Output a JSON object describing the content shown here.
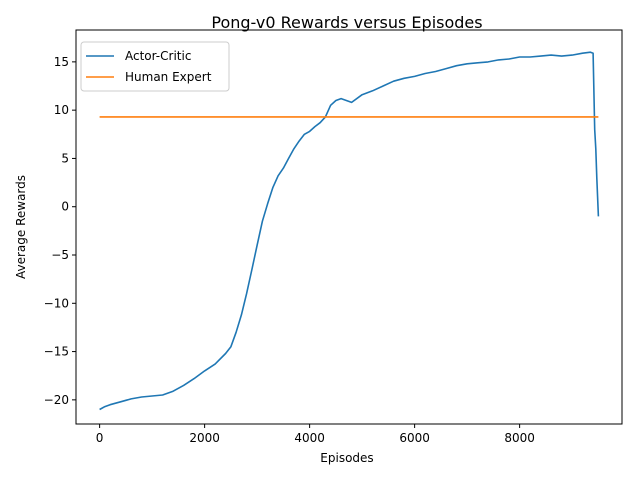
{
  "chart_data": {
    "type": "line",
    "title": "Pong-v0 Rewards versus Episodes",
    "xlabel": "Episodes",
    "ylabel": "Average Rewards",
    "xlim": [
      -450,
      9950
    ],
    "ylim": [
      -22.5,
      18.3
    ],
    "xticks": [
      0,
      2000,
      4000,
      6000,
      8000
    ],
    "yticks": [
      -20,
      -15,
      -10,
      -5,
      0,
      5,
      10,
      15
    ],
    "xtick_labels": [
      "0",
      "2000",
      "4000",
      "6000",
      "8000"
    ],
    "ytick_labels": [
      "−20",
      "−15",
      "−10",
      "−5",
      "0",
      "5",
      "10",
      "15"
    ],
    "grid": false,
    "legend_position": "top-left",
    "series": [
      {
        "name": "Actor-Critic",
        "color": "#1f77b4",
        "x": [
          0,
          100,
          200,
          400,
          600,
          800,
          1000,
          1200,
          1400,
          1600,
          1800,
          2000,
          2200,
          2400,
          2500,
          2600,
          2700,
          2800,
          2900,
          3000,
          3100,
          3200,
          3300,
          3400,
          3500,
          3600,
          3700,
          3800,
          3900,
          4000,
          4100,
          4200,
          4300,
          4400,
          4500,
          4600,
          4800,
          5000,
          5200,
          5400,
          5600,
          5800,
          6000,
          6200,
          6400,
          6600,
          6800,
          7000,
          7200,
          7400,
          7600,
          7800,
          8000,
          8200,
          8400,
          8600,
          8800,
          9000,
          9200,
          9350,
          9400,
          9430,
          9450,
          9470,
          9500
        ],
        "y": [
          -21.0,
          -20.7,
          -20.5,
          -20.2,
          -19.9,
          -19.7,
          -19.6,
          -19.5,
          -19.1,
          -18.5,
          -17.8,
          -17.0,
          -16.3,
          -15.2,
          -14.5,
          -13.0,
          -11.2,
          -9.0,
          -6.5,
          -4.0,
          -1.5,
          0.3,
          2.0,
          3.2,
          4.0,
          5.0,
          6.0,
          6.8,
          7.5,
          7.8,
          8.3,
          8.7,
          9.3,
          10.5,
          11.0,
          11.2,
          10.8,
          11.6,
          12.0,
          12.5,
          13.0,
          13.3,
          13.5,
          13.8,
          14.0,
          14.3,
          14.6,
          14.8,
          14.9,
          15.0,
          15.2,
          15.3,
          15.5,
          15.5,
          15.6,
          15.7,
          15.6,
          15.7,
          15.9,
          16.0,
          15.9,
          8.0,
          6.0,
          3.0,
          -1.0
        ]
      },
      {
        "name": "Human Expert",
        "color": "#ff7f0e",
        "x": [
          0,
          9500
        ],
        "y": [
          9.3,
          9.3
        ]
      }
    ]
  }
}
